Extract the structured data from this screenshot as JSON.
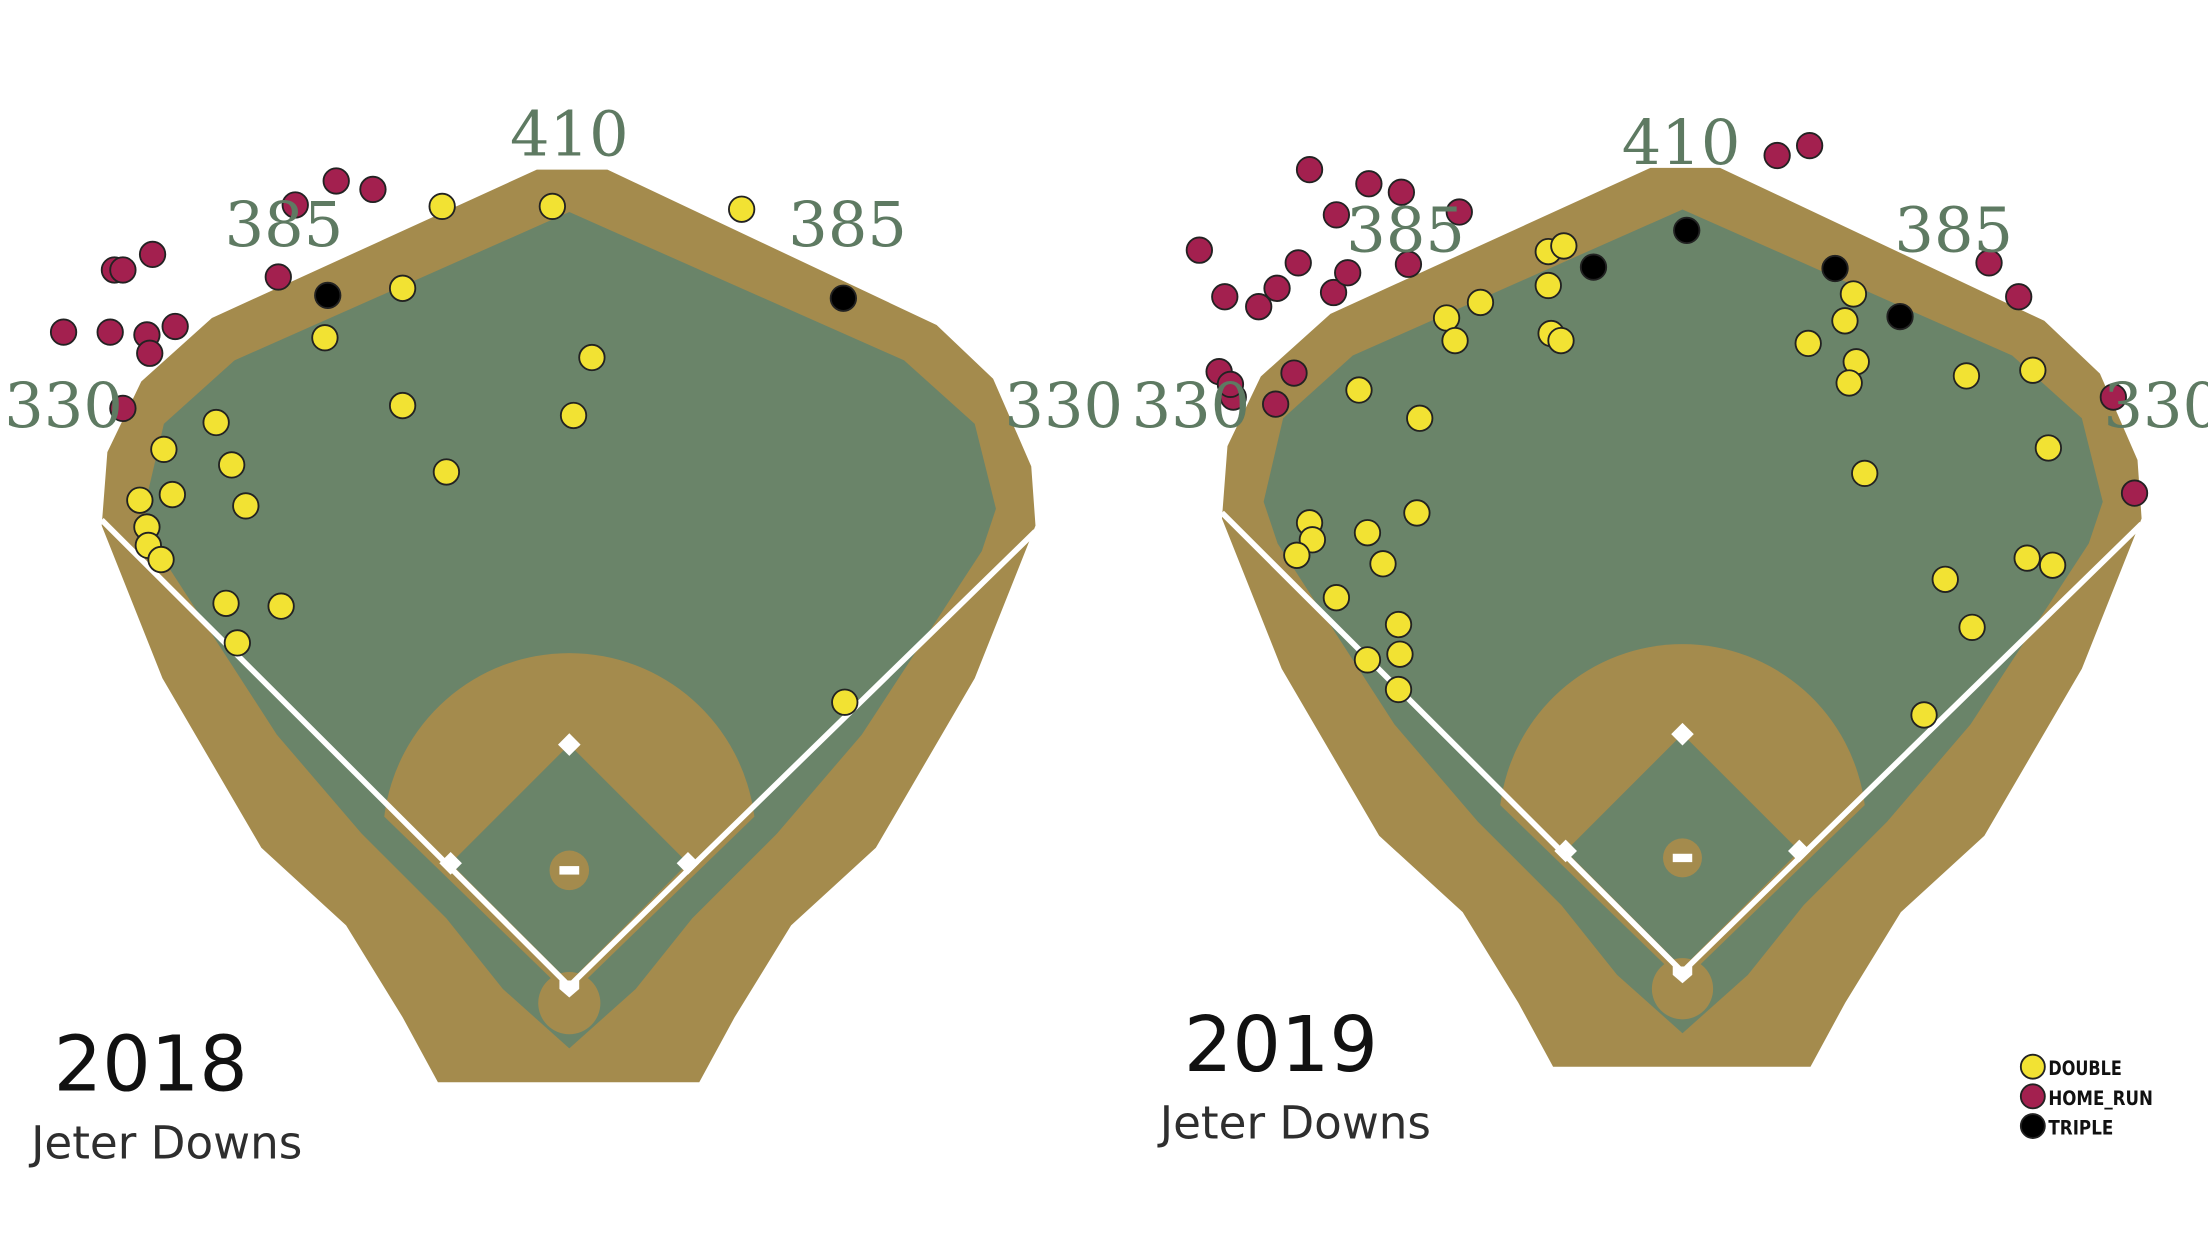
{
  "colors": {
    "warning_track": "#a48b4d",
    "grass": "#6a8469",
    "foul_line": "#ffffff",
    "dist_text": "#5e7a62",
    "DOUBLE": "#f2e233",
    "HOME_RUN": "#a3204f",
    "TRIPLE": "#000000"
  },
  "legend": [
    {
      "key": "DOUBLE",
      "label": "DOUBLE"
    },
    {
      "key": "HOME_RUN",
      "label": "HOME_RUN"
    },
    {
      "key": "TRIPLE",
      "label": "TRIPLE"
    }
  ],
  "chart_data": [
    {
      "type": "scatter",
      "title": "2018",
      "subtitle": "Jeter Downs",
      "distance_labels": {
        "left_line": "330",
        "left_center": "385",
        "center": "410",
        "right_center": "385",
        "right_line": "330"
      },
      "series": [
        {
          "name": "DOUBLE",
          "points": [
            [
              313,
              146
            ],
            [
              391,
              146
            ],
            [
              525,
              148
            ],
            [
              285,
              204
            ],
            [
              230,
              239
            ],
            [
              419,
              253
            ],
            [
              285,
              287
            ],
            [
              406,
              294
            ],
            [
              153,
              299
            ],
            [
              116,
              318
            ],
            [
              164,
              329
            ],
            [
              316,
              334
            ],
            [
              122,
              350
            ],
            [
              99,
              354
            ],
            [
              174,
              358
            ],
            [
              104,
              373
            ],
            [
              105,
              386
            ],
            [
              114,
              396
            ],
            [
              160,
              427
            ],
            [
              199,
              429
            ],
            [
              168,
              455
            ],
            [
              598,
              497
            ]
          ]
        },
        {
          "name": "HOME_RUN",
          "points": [
            [
              238,
              128
            ],
            [
              264,
              134
            ],
            [
              209,
              145
            ],
            [
              81,
              191
            ],
            [
              87,
              191
            ],
            [
              108,
              180
            ],
            [
              197,
              196
            ],
            [
              45,
              235
            ],
            [
              78,
              235
            ],
            [
              104,
              237
            ],
            [
              124,
              231
            ],
            [
              106,
              250
            ],
            [
              87,
              289
            ]
          ]
        },
        {
          "name": "TRIPLE",
          "points": [
            [
              232,
              209
            ],
            [
              597,
              211
            ]
          ]
        }
      ]
    },
    {
      "type": "scatter",
      "title": "2019",
      "subtitle": "Jeter Downs",
      "distance_labels": {
        "left_line": "330",
        "left_center": "385",
        "center": "410",
        "right_center": "385",
        "right_line": "330"
      },
      "series": [
        {
          "name": "DOUBLE",
          "points": [
            [
              1096,
              178
            ],
            [
              1107,
              174
            ],
            [
              1096,
              202
            ],
            [
              1048,
              214
            ],
            [
              1024,
              225
            ],
            [
              1030,
              241
            ],
            [
              1098,
              236
            ],
            [
              1105,
              241
            ],
            [
              1312,
              208
            ],
            [
              1306,
              227
            ],
            [
              1280,
              243
            ],
            [
              1314,
              256
            ],
            [
              1309,
              271
            ],
            [
              1392,
              266
            ],
            [
              1439,
              262
            ],
            [
              962,
              276
            ],
            [
              1005,
              296
            ],
            [
              1450,
              317
            ],
            [
              1320,
              335
            ],
            [
              1003,
              363
            ],
            [
              927,
              370
            ],
            [
              968,
              377
            ],
            [
              929,
              382
            ],
            [
              918,
              393
            ],
            [
              979,
              399
            ],
            [
              1377,
              410
            ],
            [
              1435,
              395
            ],
            [
              1453,
              400
            ],
            [
              946,
              423
            ],
            [
              990,
              442
            ],
            [
              1396,
              444
            ],
            [
              991,
              463
            ],
            [
              968,
              467
            ],
            [
              990,
              488
            ],
            [
              1362,
              506
            ]
          ]
        },
        {
          "name": "HOME_RUN",
          "points": [
            [
              927,
              120
            ],
            [
              1258,
              110
            ],
            [
              1281,
              103
            ],
            [
              969,
              130
            ],
            [
              992,
              136
            ],
            [
              946,
              152
            ],
            [
              1033,
              150
            ],
            [
              849,
              177
            ],
            [
              919,
              186
            ],
            [
              997,
              187
            ],
            [
              904,
              204
            ],
            [
              944,
              207
            ],
            [
              954,
              193
            ],
            [
              891,
              217
            ],
            [
              867,
              210
            ],
            [
              1408,
              186
            ],
            [
              1429,
              210
            ],
            [
              863,
              263
            ],
            [
              873,
              281
            ],
            [
              871,
              272
            ],
            [
              916,
              264
            ],
            [
              903,
              286
            ],
            [
              1496,
              281
            ],
            [
              1511,
              349
            ]
          ]
        },
        {
          "name": "TRIPLE",
          "points": [
            [
              1194,
              163
            ],
            [
              1128,
              189
            ],
            [
              1299,
              190
            ],
            [
              1345,
              224
            ]
          ]
        }
      ]
    }
  ]
}
